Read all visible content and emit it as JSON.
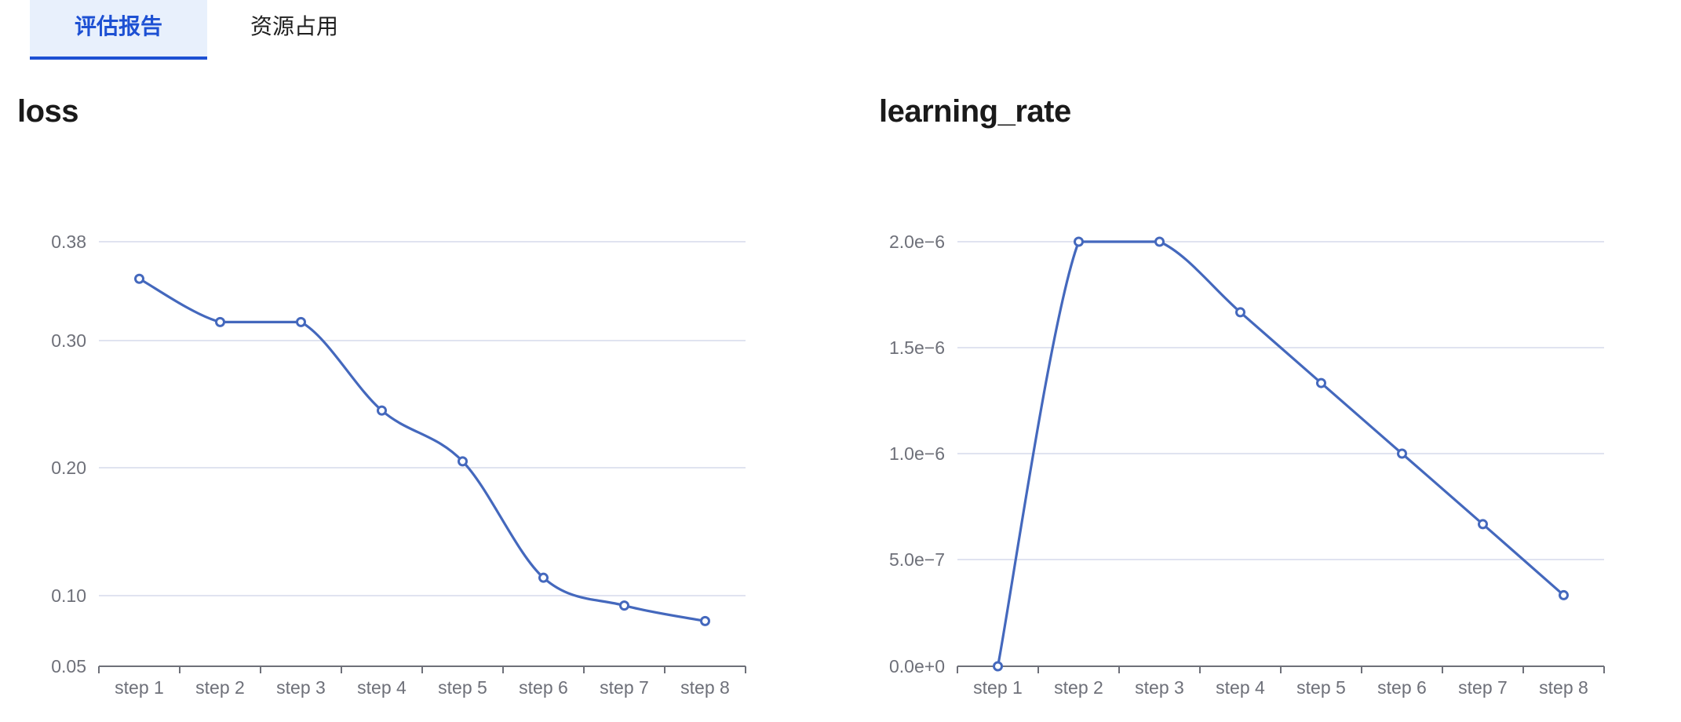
{
  "tabs": [
    {
      "label": "评估报告",
      "active": true
    },
    {
      "label": "资源占用",
      "active": false
    }
  ],
  "accent_color": "#1d50d3",
  "series_color": "#4468bd",
  "chart_data": [
    {
      "type": "line",
      "title": "loss",
      "smooth": true,
      "categories": [
        "step 1",
        "step 2",
        "step 3",
        "step 4",
        "step 5",
        "step 6",
        "step 7",
        "step 8"
      ],
      "values": [
        0.35,
        0.315,
        0.315,
        0.245,
        0.205,
        0.114,
        0.093,
        0.082
      ],
      "yticks": [
        {
          "value": 0.05,
          "label": "0.05"
        },
        {
          "value": 0.1,
          "label": "0.10"
        },
        {
          "value": 0.2,
          "label": "0.20"
        },
        {
          "value": 0.3,
          "label": "0.30"
        },
        {
          "value": 0.38,
          "label": "0.38"
        }
      ],
      "ylim": [
        0.05,
        0.38
      ],
      "grid": true
    },
    {
      "type": "line",
      "title": "learning_rate",
      "smooth": true,
      "categories": [
        "step 1",
        "step 2",
        "step 3",
        "step 4",
        "step 5",
        "step 6",
        "step 7",
        "step 8"
      ],
      "values": [
        0,
        2e-06,
        2e-06,
        1.667e-06,
        1.333e-06,
        1e-06,
        6.67e-07,
        3.33e-07
      ],
      "yticks": [
        {
          "value": 0,
          "label": "0.0e+0"
        },
        {
          "value": 5e-07,
          "label": "5.0e−7"
        },
        {
          "value": 1e-06,
          "label": "1.0e−6"
        },
        {
          "value": 1.5e-06,
          "label": "1.5e−6"
        },
        {
          "value": 2e-06,
          "label": "2.0e−6"
        }
      ],
      "ylim": [
        0,
        2e-06
      ],
      "grid": true
    }
  ]
}
